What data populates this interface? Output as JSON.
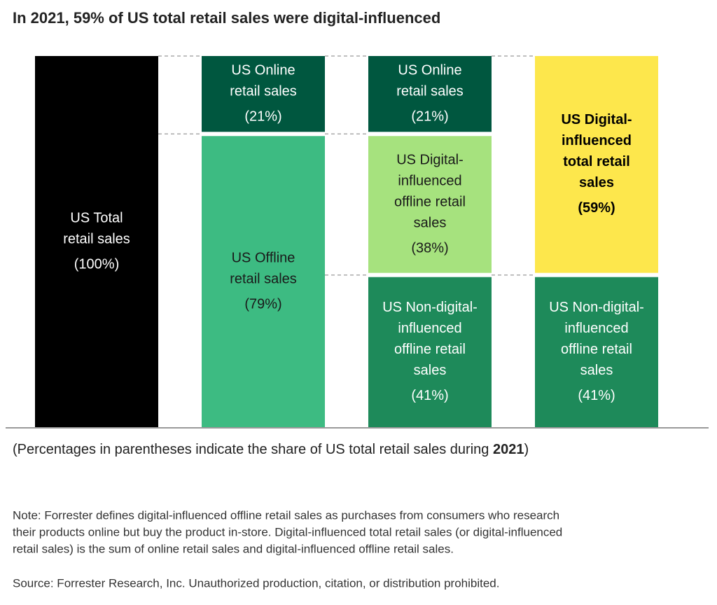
{
  "chart_data": {
    "type": "stacked-bar",
    "title": "In 2021, 59% of US total retail sales were digital-influenced",
    "ylim": [
      0,
      100
    ],
    "columns": [
      {
        "segments": [
          {
            "name": [
              "US Total",
              "retail sales"
            ],
            "value": 100,
            "value_label": "(100%)",
            "color": "#000000",
            "text_color": "#ffffff"
          }
        ]
      },
      {
        "segments": [
          {
            "name": [
              "US Offline",
              "retail sales"
            ],
            "value": 79,
            "value_label": "(79%)",
            "color": "#3dbb82",
            "text_color": "#1a1a1a"
          },
          {
            "name": [
              "US Online",
              "retail sales"
            ],
            "value": 21,
            "value_label": "(21%)",
            "color": "#00573f",
            "text_color": "#ffffff"
          }
        ]
      },
      {
        "segments": [
          {
            "name": [
              "US Non-digital-",
              "influenced",
              "offline retail",
              "sales"
            ],
            "value": 41,
            "value_label": "(41%)",
            "color": "#1e8a5a",
            "text_color": "#ffffff"
          },
          {
            "name": [
              "US Digital-",
              "influenced",
              "offline retail",
              "sales"
            ],
            "value": 38,
            "value_label": "(38%)",
            "color": "#a6e27e",
            "text_color": "#1a1a1a"
          },
          {
            "name": [
              "US Online",
              "retail sales"
            ],
            "value": 21,
            "value_label": "(21%)",
            "color": "#00573f",
            "text_color": "#ffffff"
          }
        ]
      },
      {
        "segments": [
          {
            "name": [
              "US Non-digital-",
              "influenced",
              "offline retail",
              "sales"
            ],
            "value": 41,
            "value_label": "(41%)",
            "color": "#1e8a5a",
            "text_color": "#ffffff"
          },
          {
            "name": [
              "US Digital-",
              "influenced",
              "total retail",
              "sales"
            ],
            "value": 59,
            "value_label": "(59%)",
            "color": "#fde74c",
            "text_color": "#000000",
            "bold": true
          }
        ]
      }
    ],
    "caption": [
      "(Percentages in parentheses indicate the share of US total retail sales during ",
      "2021",
      ")"
    ],
    "note": [
      "Note: Forrester defines digital-influenced offline retail sales as purchases from consumers who research",
      "their products online but buy the product in-store. Digital-influenced total retail sales (or digital-influenced",
      "retail sales) is the sum of online retail sales and digital-influenced offline retail sales."
    ],
    "source": "Source: Forrester Research, Inc. Unauthorized production, citation, or distribution prohibited."
  }
}
